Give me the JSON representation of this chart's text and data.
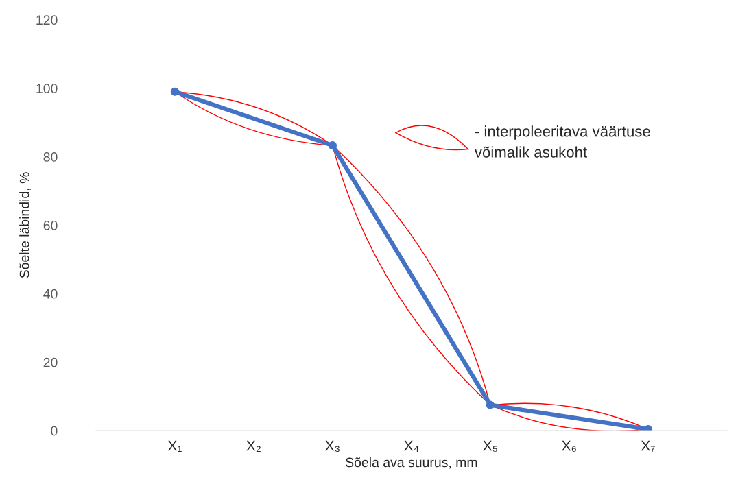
{
  "chart_data": {
    "type": "line",
    "xlabel": "Sõela ava suurus, mm",
    "ylabel": "Sõelte läbindid, %",
    "categories": [
      "X₁",
      "X₂",
      "X₃",
      "X₄",
      "X₅",
      "X₆",
      "X₇"
    ],
    "series": [
      {
        "color": "#4472c4",
        "values": [
          99,
          null,
          83.3,
          null,
          7.5,
          null,
          0.4
        ]
      }
    ],
    "ylim": [
      0,
      120
    ],
    "yticks": [
      0,
      20,
      40,
      60,
      80,
      100,
      120
    ],
    "marker": "circle",
    "line_style": "solid",
    "grid": false,
    "legend": false,
    "annotations": [
      "- interpoleeritava väärtuse\nvõimalik asukoht"
    ]
  }
}
